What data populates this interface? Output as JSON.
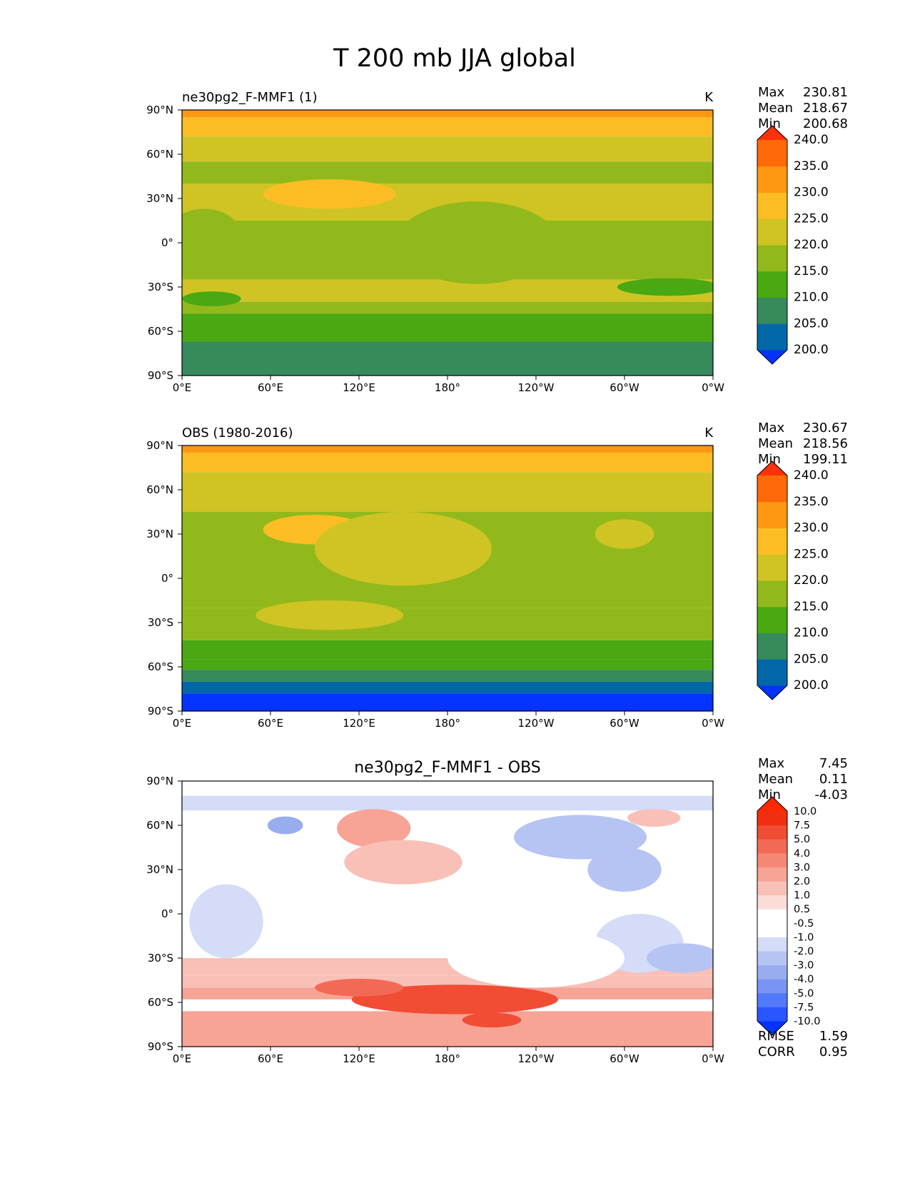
{
  "figure": {
    "title": "T 200 mb JJA global"
  },
  "chart_data": [
    {
      "type": "heatmap",
      "title_left": "ne30pg2_F-MMF1 (1)",
      "title_right": "K",
      "x_ticks": [
        "0°E",
        "60°E",
        "120°E",
        "180°",
        "120°W",
        "60°W",
        "0°W"
      ],
      "y_ticks": [
        "90°N",
        "60°N",
        "30°N",
        "0°",
        "30°S",
        "60°S",
        "90°S"
      ],
      "xlim": [
        0,
        360
      ],
      "ylim": [
        -90,
        90
      ],
      "stats": [
        {
          "label": "Max",
          "value": "230.81"
        },
        {
          "label": "Mean",
          "value": "218.67"
        },
        {
          "label": "Min",
          "value": "200.68"
        }
      ],
      "colorbar": {
        "levels": [
          200.0,
          205.0,
          210.0,
          215.0,
          220.0,
          225.0,
          230.0,
          235.0,
          240.0
        ],
        "labels": [
          "200.0",
          "205.0",
          "210.0",
          "215.0",
          "220.0",
          "225.0",
          "230.0",
          "235.0",
          "240.0"
        ],
        "colors": [
          "#0433ff",
          "#0267a6",
          "#368a5c",
          "#4aa812",
          "#92b91b",
          "#cfc424",
          "#fcbd24",
          "#fe9813",
          "#ff6a09",
          "#ff300c"
        ]
      },
      "lat_bands": [
        {
          "lat": [
            85,
            90
          ],
          "value": 232
        },
        {
          "lat": [
            72,
            85
          ],
          "value": 228
        },
        {
          "lat": [
            55,
            72
          ],
          "value": 222
        },
        {
          "lat": [
            40,
            55
          ],
          "value": 218
        },
        {
          "lat": [
            15,
            40
          ],
          "value": 222
        },
        {
          "lat": [
            -25,
            15
          ],
          "value": 218
        },
        {
          "lat": [
            -40,
            -25
          ],
          "value": 220
        },
        {
          "lat": [
            -48,
            -40
          ],
          "value": 216
        },
        {
          "lat": [
            -60,
            -48
          ],
          "value": 213
        },
        {
          "lat": [
            -67,
            -60
          ],
          "value": 212
        },
        {
          "lat": [
            -75,
            -67
          ],
          "value": 208
        },
        {
          "lat": [
            -90,
            -75
          ],
          "value": 207
        }
      ],
      "blobs": [
        {
          "lon": 100,
          "lat": 33,
          "rlon": 45,
          "rlat": 10,
          "value": 227
        },
        {
          "lon": 200,
          "lat": 0,
          "rlon": 55,
          "rlat": 28,
          "value": 218
        },
        {
          "lon": 15,
          "lat": 5,
          "rlon": 25,
          "rlat": 18,
          "value": 218
        },
        {
          "lon": 300,
          "lat": -5,
          "rlon": 25,
          "rlat": 20,
          "value": 218
        },
        {
          "lon": 330,
          "lat": -30,
          "rlon": 35,
          "rlat": 6,
          "value": 213
        },
        {
          "lon": 20,
          "lat": -38,
          "rlon": 20,
          "rlat": 5,
          "value": 213
        }
      ]
    },
    {
      "type": "heatmap",
      "title_left": "OBS (1980-2016)",
      "title_right": "K",
      "x_ticks": [
        "0°E",
        "60°E",
        "120°E",
        "180°",
        "120°W",
        "60°W",
        "0°W"
      ],
      "y_ticks": [
        "90°N",
        "60°N",
        "30°N",
        "0°",
        "30°S",
        "60°S",
        "90°S"
      ],
      "xlim": [
        0,
        360
      ],
      "ylim": [
        -90,
        90
      ],
      "stats": [
        {
          "label": "Max",
          "value": "230.67"
        },
        {
          "label": "Mean",
          "value": "218.56"
        },
        {
          "label": "Min",
          "value": "199.11"
        }
      ],
      "colorbar": {
        "levels": [
          200.0,
          205.0,
          210.0,
          215.0,
          220.0,
          225.0,
          230.0,
          235.0,
          240.0
        ],
        "labels": [
          "200.0",
          "205.0",
          "210.0",
          "215.0",
          "220.0",
          "225.0",
          "230.0",
          "235.0",
          "240.0"
        ],
        "colors": [
          "#0433ff",
          "#0267a6",
          "#368a5c",
          "#4aa812",
          "#92b91b",
          "#cfc424",
          "#fcbd24",
          "#fe9813",
          "#ff6a09",
          "#ff300c"
        ]
      },
      "lat_bands": [
        {
          "lat": [
            85,
            90
          ],
          "value": 232
        },
        {
          "lat": [
            72,
            85
          ],
          "value": 228
        },
        {
          "lat": [
            45,
            72
          ],
          "value": 222
        },
        {
          "lat": [
            15,
            45
          ],
          "value": 218
        },
        {
          "lat": [
            -20,
            15
          ],
          "value": 218
        },
        {
          "lat": [
            -42,
            -20
          ],
          "value": 218
        },
        {
          "lat": [
            -55,
            -42
          ],
          "value": 213
        },
        {
          "lat": [
            -62,
            -55
          ],
          "value": 212
        },
        {
          "lat": [
            -70,
            -62
          ],
          "value": 208
        },
        {
          "lat": [
            -78,
            -70
          ],
          "value": 203
        },
        {
          "lat": [
            -90,
            -78
          ],
          "value": 198
        }
      ],
      "blobs": [
        {
          "lon": 90,
          "lat": 33,
          "rlon": 35,
          "rlat": 10,
          "value": 227
        },
        {
          "lon": 150,
          "lat": 20,
          "rlon": 60,
          "rlat": 25,
          "value": 222
        },
        {
          "lon": 100,
          "lat": -25,
          "rlon": 50,
          "rlat": 10,
          "value": 222
        },
        {
          "lon": 270,
          "lat": 25,
          "rlon": 40,
          "rlat": 18,
          "value": 218
        },
        {
          "lon": 300,
          "lat": 30,
          "rlon": 20,
          "rlat": 10,
          "value": 222
        }
      ]
    },
    {
      "type": "heatmap",
      "title_center": "ne30pg2_F-MMF1 - OBS",
      "x_ticks": [
        "0°E",
        "60°E",
        "120°E",
        "180°",
        "120°W",
        "60°W",
        "0°W"
      ],
      "y_ticks": [
        "90°N",
        "60°N",
        "30°N",
        "0°",
        "30°S",
        "60°S",
        "90°S"
      ],
      "xlim": [
        0,
        360
      ],
      "ylim": [
        -90,
        90
      ],
      "stats": [
        {
          "label": "Max",
          "value": "7.45"
        },
        {
          "label": "Mean",
          "value": "0.11"
        },
        {
          "label": "Min",
          "value": "-4.03"
        }
      ],
      "colorbar": {
        "levels": [
          -10.0,
          -7.5,
          -5.0,
          -4.0,
          -3.0,
          -2.0,
          -1.0,
          -0.5,
          0.5,
          1.0,
          2.0,
          3.0,
          4.0,
          5.0,
          7.5,
          10.0
        ],
        "labels": [
          "-10.0",
          "-7.5",
          "-5.0",
          "-4.0",
          "-3.0",
          "-2.0",
          "-1.0",
          "-0.5",
          "0.5",
          "1.0",
          "2.0",
          "3.0",
          "4.0",
          "5.0",
          "7.5",
          "10.0"
        ],
        "colors": [
          "#0433ff",
          "#2a55ff",
          "#5278fb",
          "#7a94f4",
          "#98adf0",
          "#b5c4f3",
          "#d4dcf7",
          "#ffffff",
          "#ffffff",
          "#fbdcd7",
          "#f9c0b7",
          "#f7a496",
          "#f58775",
          "#f26a55",
          "#f04d34",
          "#f02e10",
          "#ff2800"
        ]
      },
      "stats_footer": [
        {
          "label": "RMSE",
          "value": "1.59"
        },
        {
          "label": "CORR",
          "value": "0.95"
        }
      ],
      "lat_bands": [
        {
          "lat": [
            80,
            90
          ],
          "value": 0
        },
        {
          "lat": [
            70,
            80
          ],
          "value": -1.2
        },
        {
          "lat": [
            20,
            70
          ],
          "value": -0.2
        },
        {
          "lat": [
            -30,
            20
          ],
          "value": 0
        },
        {
          "lat": [
            -42,
            -30
          ],
          "value": 1.2
        },
        {
          "lat": [
            -50,
            -42
          ],
          "value": 1.5
        },
        {
          "lat": [
            -58,
            -50
          ],
          "value": 2.5
        },
        {
          "lat": [
            -66,
            -58
          ],
          "value": 0.2
        },
        {
          "lat": [
            -90,
            -66
          ],
          "value": 2.5
        }
      ],
      "blobs": [
        {
          "lon": 130,
          "lat": 58,
          "rlon": 25,
          "rlat": 13,
          "value": 2.8
        },
        {
          "lon": 150,
          "lat": 35,
          "rlon": 40,
          "rlat": 15,
          "value": 1.2
        },
        {
          "lon": 270,
          "lat": 52,
          "rlon": 45,
          "rlat": 15,
          "value": -2.5
        },
        {
          "lon": 300,
          "lat": 30,
          "rlon": 25,
          "rlat": 15,
          "value": -2.2
        },
        {
          "lon": 30,
          "lat": -5,
          "rlon": 25,
          "rlat": 25,
          "value": -1.5
        },
        {
          "lon": 310,
          "lat": -20,
          "rlon": 30,
          "rlat": 20,
          "value": -1.5
        },
        {
          "lon": 340,
          "lat": -30,
          "rlon": 25,
          "rlat": 10,
          "value": -2.4
        },
        {
          "lon": 240,
          "lat": -30,
          "rlon": 60,
          "rlat": 20,
          "value": -0.8
        },
        {
          "lon": 185,
          "lat": -58,
          "rlon": 70,
          "rlat": 10,
          "value": 5.5
        },
        {
          "lon": 120,
          "lat": -50,
          "rlon": 30,
          "rlat": 6,
          "value": 4.5
        },
        {
          "lon": 210,
          "lat": -72,
          "rlon": 20,
          "rlat": 5,
          "value": 5.5
        },
        {
          "lon": 70,
          "lat": 60,
          "rlon": 12,
          "rlat": 6,
          "value": -3.2
        },
        {
          "lon": 320,
          "lat": 65,
          "rlon": 18,
          "rlat": 6,
          "value": 1.5
        }
      ]
    }
  ]
}
